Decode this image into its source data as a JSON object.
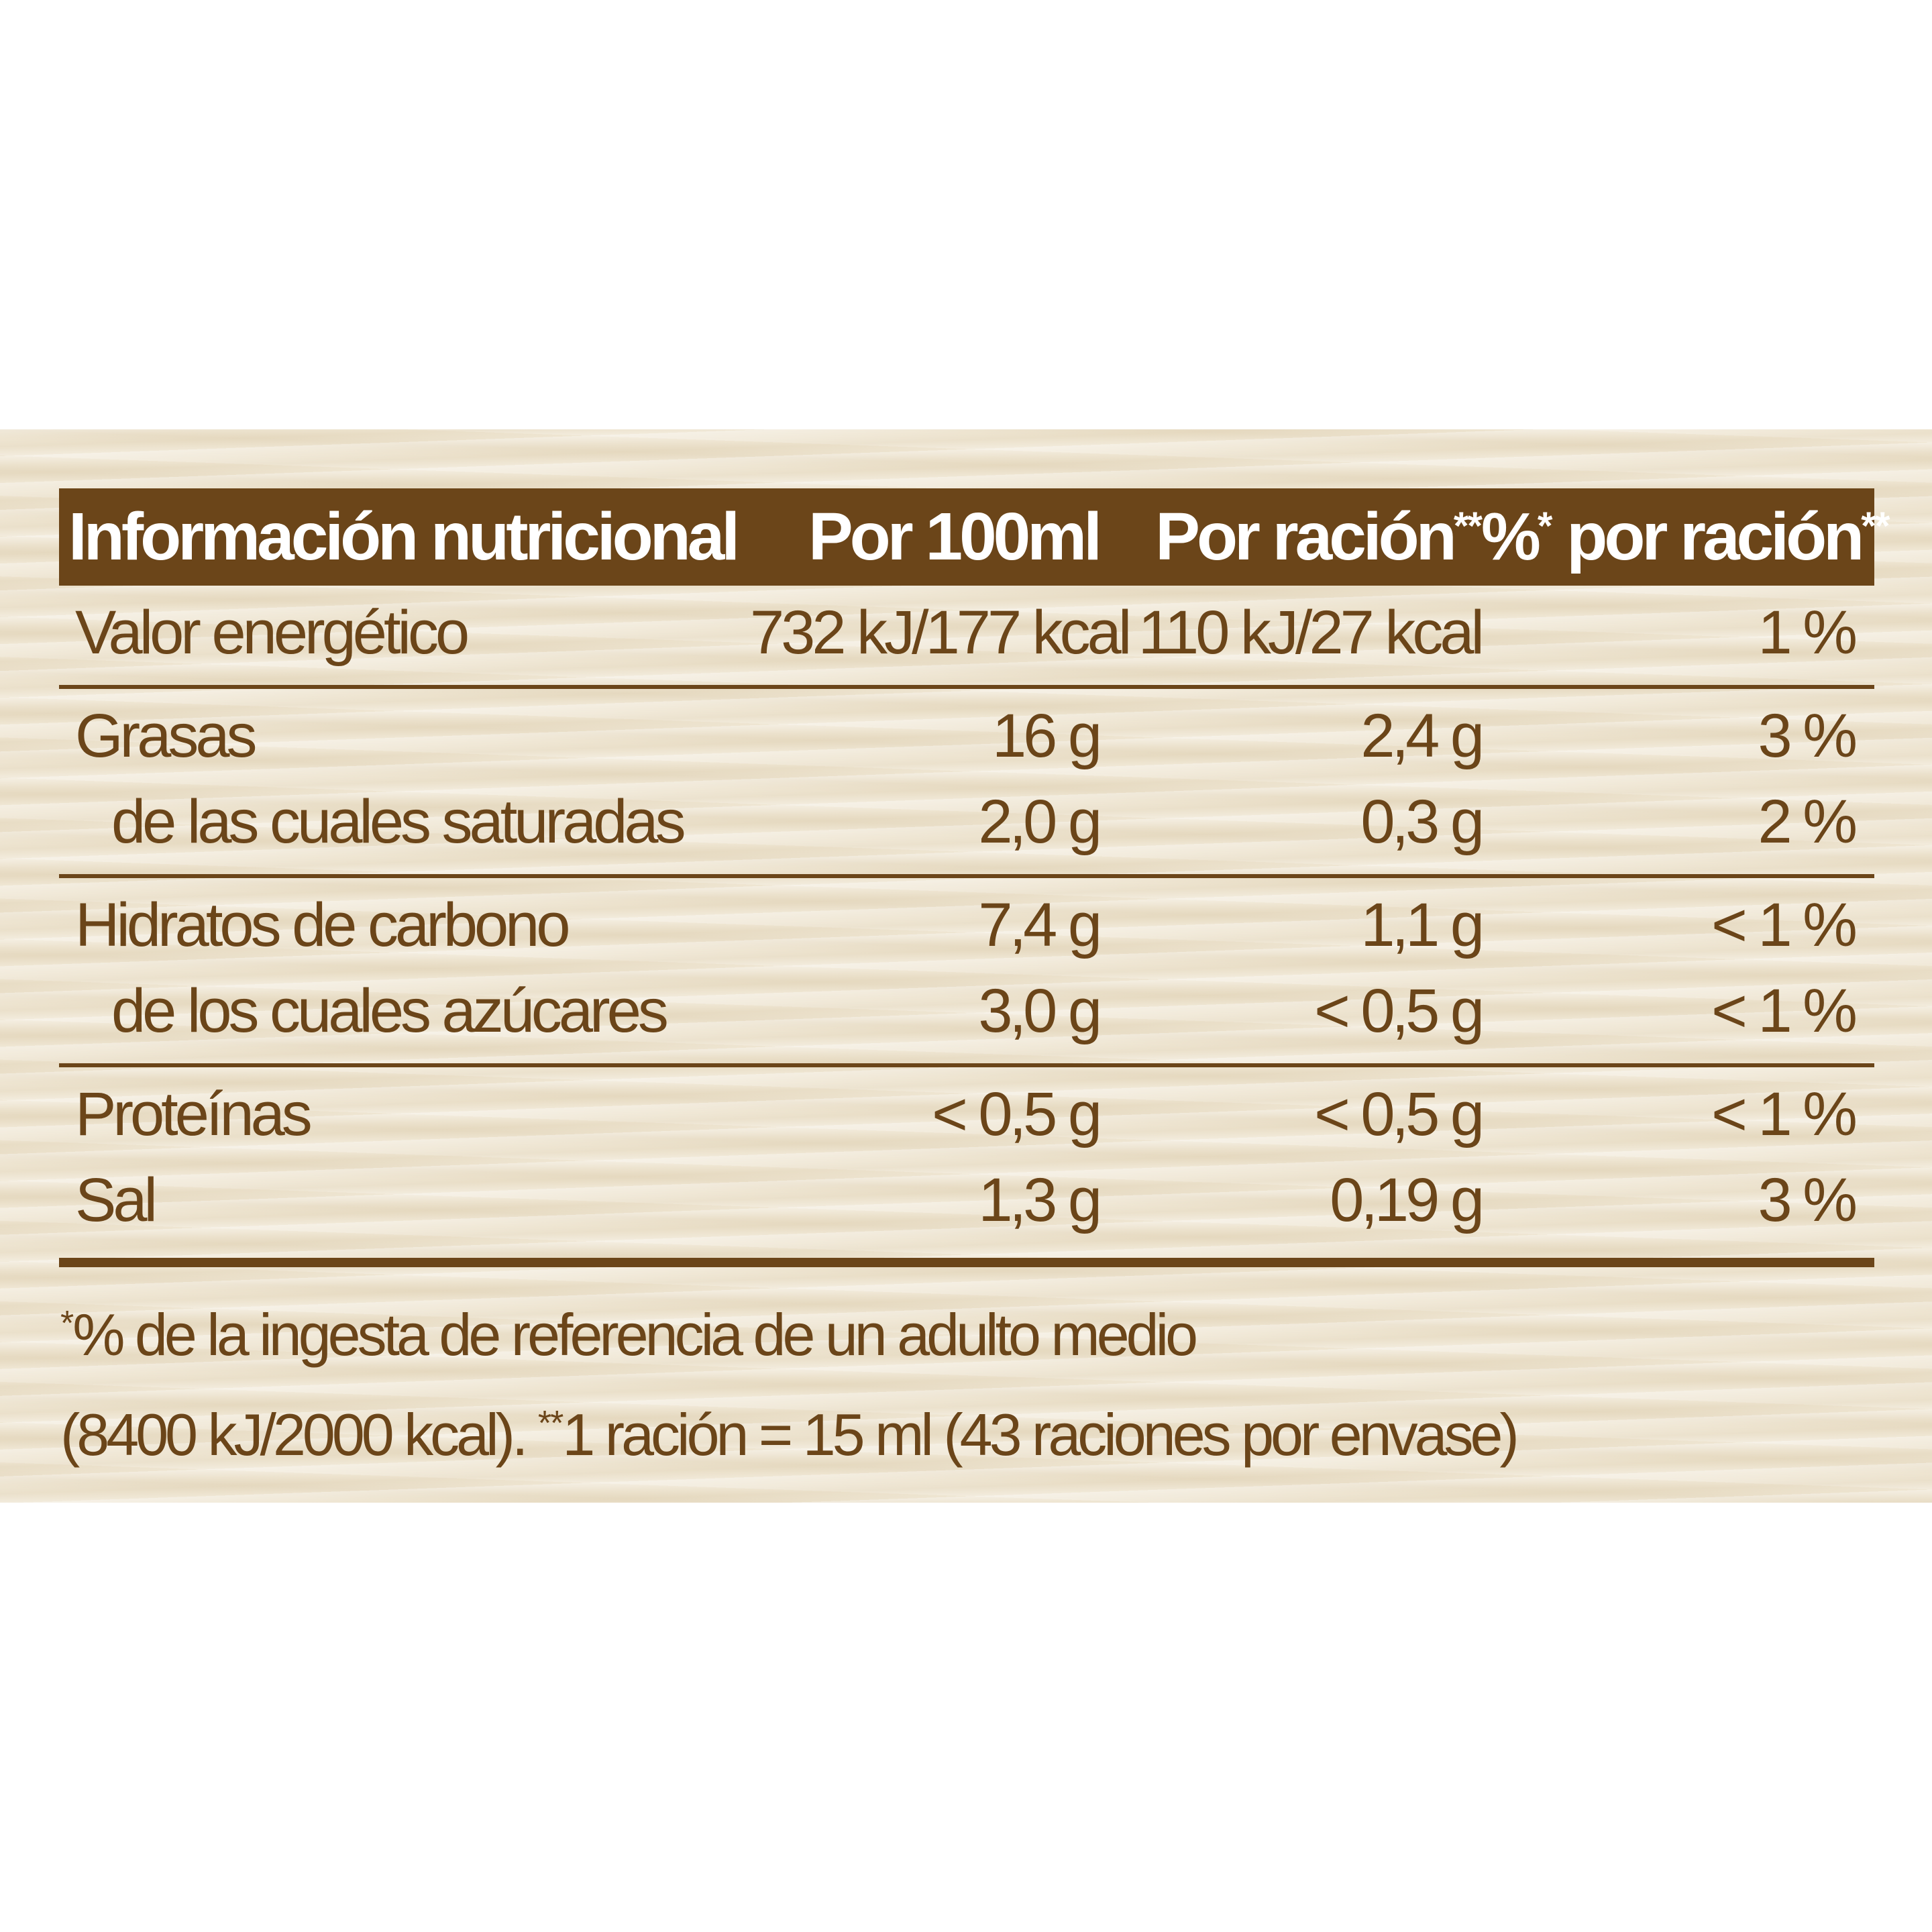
{
  "header": {
    "title": "Información nutricional",
    "per100": "Por 100ml",
    "perServing": "Por ración",
    "perServingMark": "**",
    "pctMark": "*",
    "pctPrefix": "%",
    "pctLabel": " por ración",
    "pctServingMark": "**"
  },
  "rows": {
    "energy": {
      "name": "Valor energético",
      "per100": "732 kJ/177 kcal",
      "perServing": "110 kJ/27 kcal",
      "pct": "1 %"
    },
    "fat": {
      "name": "Grasas",
      "per100": "16 g",
      "perServing": "2,4 g",
      "pct": "3 %"
    },
    "saturated": {
      "name": "de las cuales saturadas",
      "per100": "2,0 g",
      "perServing": "0,3 g",
      "pct": "2 %"
    },
    "carbs": {
      "name": "Hidratos de carbono",
      "per100": "7,4 g",
      "perServing": "1,1 g",
      "pct": "< 1 %"
    },
    "sugars": {
      "name": "de los cuales azúcares",
      "per100": "3,0 g",
      "perServing": "< 0,5 g",
      "pct": "< 1 %"
    },
    "protein": {
      "name": "Proteínas",
      "per100": "< 0,5 g",
      "perServing": "< 0,5 g",
      "pct": "< 1 %"
    },
    "salt": {
      "name": "Sal",
      "per100": "1,3 g",
      "perServing": "0,19 g",
      "pct": "3 %"
    }
  },
  "footnote": {
    "mark1": "*",
    "line1": "% de la ingesta de referencia de un adulto medio",
    "line2a": "(8400 kJ/2000 kcal). ",
    "mark2": "**",
    "line2b": "1 ración = 15 ml (43 raciones por envase)"
  },
  "colors": {
    "brown": "#6b4519",
    "background": "#efe6d3"
  }
}
